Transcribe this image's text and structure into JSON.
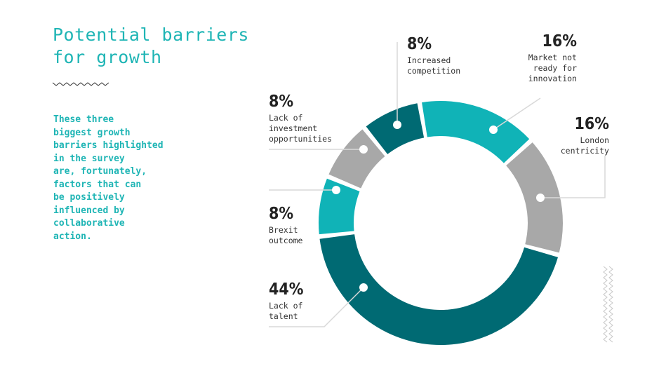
{
  "title_lines": [
    "Potential barriers",
    "for growth"
  ],
  "intro_lines": [
    "These three",
    "biggest growth",
    "barriers highlighted",
    "in the survey",
    "are, fortunately,",
    "factors that can",
    "be positively",
    "influenced by",
    "collaborative",
    "action."
  ],
  "colors": {
    "dark_teal": "#006a73",
    "teal": "#10b3b7",
    "grey": "#a8a8a8",
    "title": "#1fb5b5"
  },
  "chart_data": {
    "type": "pie",
    "variant": "donut",
    "slices": [
      {
        "value_label": "16%",
        "value": 16,
        "label_lines": [
          "Market not",
          "ready for",
          "innovation"
        ],
        "color": "#10b3b7"
      },
      {
        "value_label": "16%",
        "value": 16,
        "label_lines": [
          "London",
          "centricity"
        ],
        "color": "#a8a8a8"
      },
      {
        "value_label": "44%",
        "value": 44,
        "label_lines": [
          "Lack of",
          "talent"
        ],
        "color": "#006a73"
      },
      {
        "value_label": "8%",
        "value": 8,
        "label_lines": [
          "Brexit",
          "outcome"
        ],
        "color": "#10b3b7"
      },
      {
        "value_label": "8%",
        "value": 8,
        "label_lines": [
          "Lack of",
          "investment",
          "opportunities"
        ],
        "color": "#a8a8a8"
      },
      {
        "value_label": "8%",
        "value": 8,
        "label_lines": [
          "Increased",
          "competition"
        ],
        "color": "#006a73"
      }
    ]
  }
}
